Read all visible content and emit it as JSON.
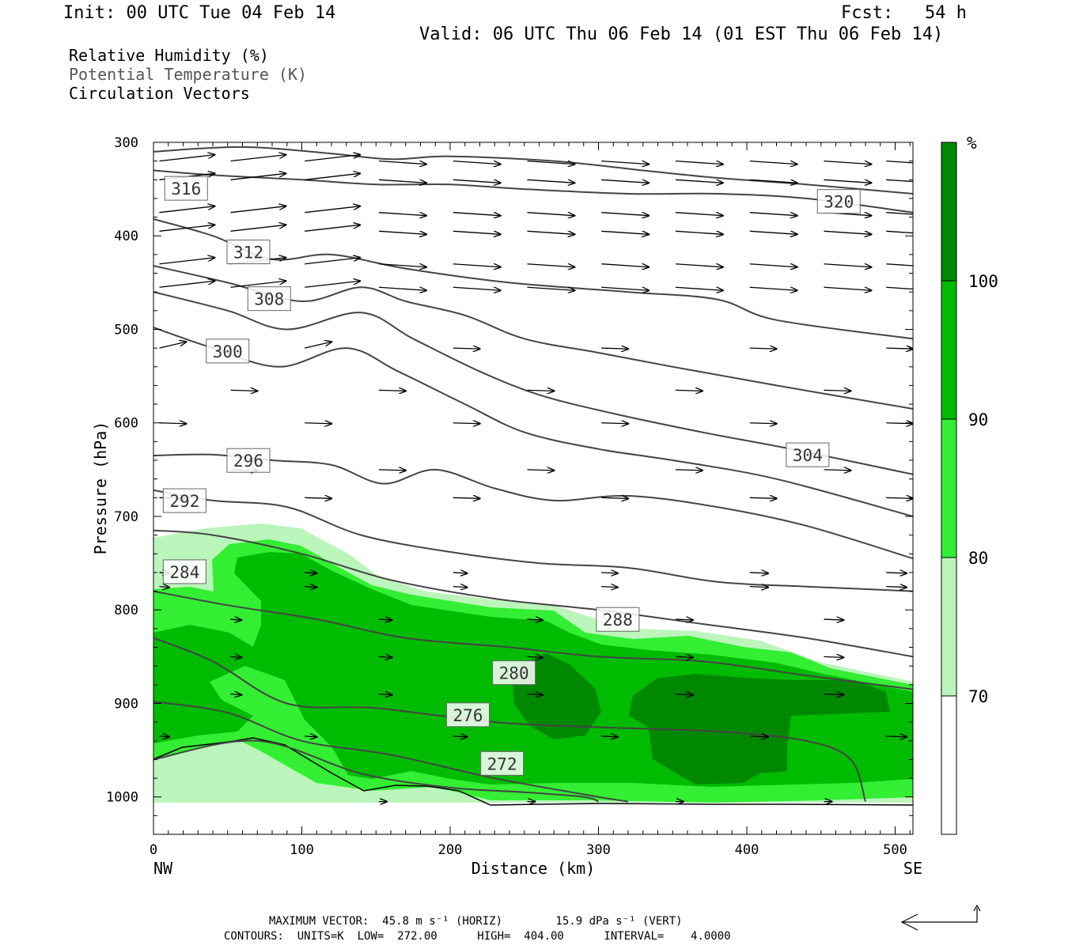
{
  "header": {
    "init": "Init: 00 UTC Tue 04 Feb 14",
    "fcst": "Fcst:   54 h",
    "valid": "Valid: 06 UTC Thu 06 Feb 14 (01 EST Thu 06 Feb 14)"
  },
  "fields": {
    "rh": "Relative Humidity (%)",
    "theta": "Potential Temperature (K)",
    "vectors": "Circulation Vectors"
  },
  "footer": {
    "max_vector": "MAXIMUM VECTOR:  45.8 m s⁻¹ (HORIZ)        15.9 dPa s⁻¹ (VERT)",
    "contours": "CONTOURS:  UNITS=K  LOW=  272.00      HIGH=  404.00      INTERVAL=    4.0000"
  },
  "chart_data": {
    "type": "contour-cross-section",
    "xlabel": "Distance (km)",
    "ylabel": "Pressure (hPa)",
    "xlim": [
      0,
      512
    ],
    "ylim": [
      300,
      1040
    ],
    "x_ticks": [
      "0",
      "100",
      "200",
      "300",
      "400",
      "500"
    ],
    "x_tick_values": [
      0,
      100,
      200,
      300,
      400,
      500
    ],
    "y_ticks": [
      "300",
      "400",
      "500",
      "600",
      "700",
      "800",
      "900",
      "1000"
    ],
    "y_tick_values": [
      300,
      400,
      500,
      600,
      700,
      800,
      900,
      1000
    ],
    "x_left_label": "NW",
    "x_right_label": "SE",
    "colorbar": {
      "unit": "%",
      "levels": [
        "70",
        "80",
        "90",
        "100"
      ],
      "level_values": [
        70,
        80,
        90,
        100
      ],
      "colors": [
        "#ffffff",
        "#bbf5bb",
        "#33ee33",
        "#00bb00",
        "#008800"
      ]
    },
    "isentropes": [
      {
        "label": "316",
        "points": [
          [
            0,
            330
          ],
          [
            40,
            335
          ],
          [
            100,
            340
          ],
          [
            150,
            345
          ],
          [
            200,
            345
          ],
          [
            250,
            350
          ],
          [
            320,
            355
          ],
          [
            380,
            355
          ],
          [
            440,
            360
          ],
          [
            512,
            375
          ]
        ],
        "label_at": [
          22,
          350
        ]
      },
      {
        "label": "320",
        "points": [
          [
            0,
            310
          ],
          [
            60,
            305
          ],
          [
            120,
            312
          ],
          [
            160,
            318
          ],
          [
            200,
            315
          ],
          [
            270,
            320
          ],
          [
            330,
            330
          ],
          [
            380,
            338
          ],
          [
            440,
            345
          ],
          [
            512,
            355
          ]
        ],
        "label_at": [
          462,
          364
        ]
      },
      {
        "label": "312",
        "points": [
          [
            0,
            382
          ],
          [
            40,
            400
          ],
          [
            80,
            425
          ],
          [
            120,
            420
          ],
          [
            170,
            435
          ],
          [
            240,
            450
          ],
          [
            320,
            460
          ],
          [
            380,
            468
          ],
          [
            420,
            490
          ],
          [
            512,
            510
          ]
        ],
        "label_at": [
          64,
          418
        ]
      },
      {
        "label": "308",
        "points": [
          [
            0,
            432
          ],
          [
            50,
            450
          ],
          [
            100,
            470
          ],
          [
            140,
            455
          ],
          [
            170,
            470
          ],
          [
            210,
            485
          ],
          [
            250,
            510
          ],
          [
            300,
            525
          ],
          [
            350,
            540
          ],
          [
            420,
            560
          ],
          [
            512,
            585
          ]
        ],
        "label_at": [
          78,
          468
        ]
      },
      {
        "label": "304",
        "points": [
          [
            0,
            460
          ],
          [
            50,
            480
          ],
          [
            90,
            500
          ],
          [
            140,
            482
          ],
          [
            175,
            510
          ],
          [
            220,
            545
          ],
          [
            260,
            570
          ],
          [
            310,
            590
          ],
          [
            370,
            610
          ],
          [
            430,
            628
          ],
          [
            512,
            655
          ]
        ],
        "label_at": [
          441,
          635
        ]
      },
      {
        "label": "300",
        "points": [
          [
            0,
            498
          ],
          [
            40,
            520
          ],
          [
            85,
            540
          ],
          [
            130,
            520
          ],
          [
            165,
            545
          ],
          [
            210,
            580
          ],
          [
            250,
            610
          ],
          [
            300,
            628
          ],
          [
            350,
            640
          ],
          [
            420,
            660
          ],
          [
            512,
            700
          ]
        ],
        "label_at": [
          50,
          524
        ]
      },
      {
        "label": "296",
        "points": [
          [
            0,
            635
          ],
          [
            40,
            634
          ],
          [
            80,
            640
          ],
          [
            120,
            645
          ],
          [
            155,
            665
          ],
          [
            190,
            650
          ],
          [
            230,
            670
          ],
          [
            270,
            683
          ],
          [
            320,
            678
          ],
          [
            380,
            690
          ],
          [
            440,
            710
          ],
          [
            512,
            745
          ]
        ],
        "label_at": [
          64,
          641
        ]
      },
      {
        "label": "292",
        "points": [
          [
            0,
            672
          ],
          [
            40,
            683
          ],
          [
            90,
            690
          ],
          [
            140,
            720
          ],
          [
            200,
            738
          ],
          [
            260,
            750
          ],
          [
            320,
            755
          ],
          [
            380,
            770
          ],
          [
            440,
            775
          ],
          [
            512,
            780
          ]
        ],
        "label_at": [
          21,
          684
        ]
      },
      {
        "label": "288",
        "points": [
          [
            0,
            715
          ],
          [
            40,
            720
          ],
          [
            100,
            740
          ],
          [
            160,
            768
          ],
          [
            230,
            788
          ],
          [
            300,
            800
          ],
          [
            370,
            815
          ],
          [
            440,
            830
          ],
          [
            512,
            850
          ]
        ],
        "label_at": [
          313,
          811
        ]
      },
      {
        "label": "284",
        "points": [
          [
            0,
            780
          ],
          [
            50,
            795
          ],
          [
            110,
            810
          ],
          [
            170,
            830
          ],
          [
            240,
            840
          ],
          [
            300,
            850
          ],
          [
            370,
            855
          ],
          [
            440,
            870
          ],
          [
            512,
            885
          ]
        ],
        "label_at": [
          21,
          760
        ]
      },
      {
        "label": "280",
        "points": [
          [
            0,
            830
          ],
          [
            40,
            855
          ],
          [
            90,
            900
          ],
          [
            150,
            905
          ],
          [
            230,
            920
          ],
          [
            290,
            925
          ],
          [
            380,
            930
          ],
          [
            440,
            940
          ],
          [
            470,
            960
          ],
          [
            480,
            1005
          ]
        ],
        "label_at": [
          243,
          868
        ]
      },
      {
        "label": "276",
        "points": [
          [
            0,
            898
          ],
          [
            50,
            910
          ],
          [
            100,
            940
          ],
          [
            160,
            955
          ],
          [
            230,
            980
          ],
          [
            300,
            1000
          ],
          [
            320,
            1005
          ]
        ],
        "label_at": [
          212,
          913
        ]
      },
      {
        "label": "272",
        "points": [
          [
            0,
            960
          ],
          [
            70,
            940
          ],
          [
            140,
            975
          ],
          [
            200,
            990
          ],
          [
            250,
            995
          ],
          [
            290,
            1000
          ],
          [
            300,
            1005
          ]
        ],
        "label_at": [
          235,
          965
        ]
      }
    ]
  }
}
